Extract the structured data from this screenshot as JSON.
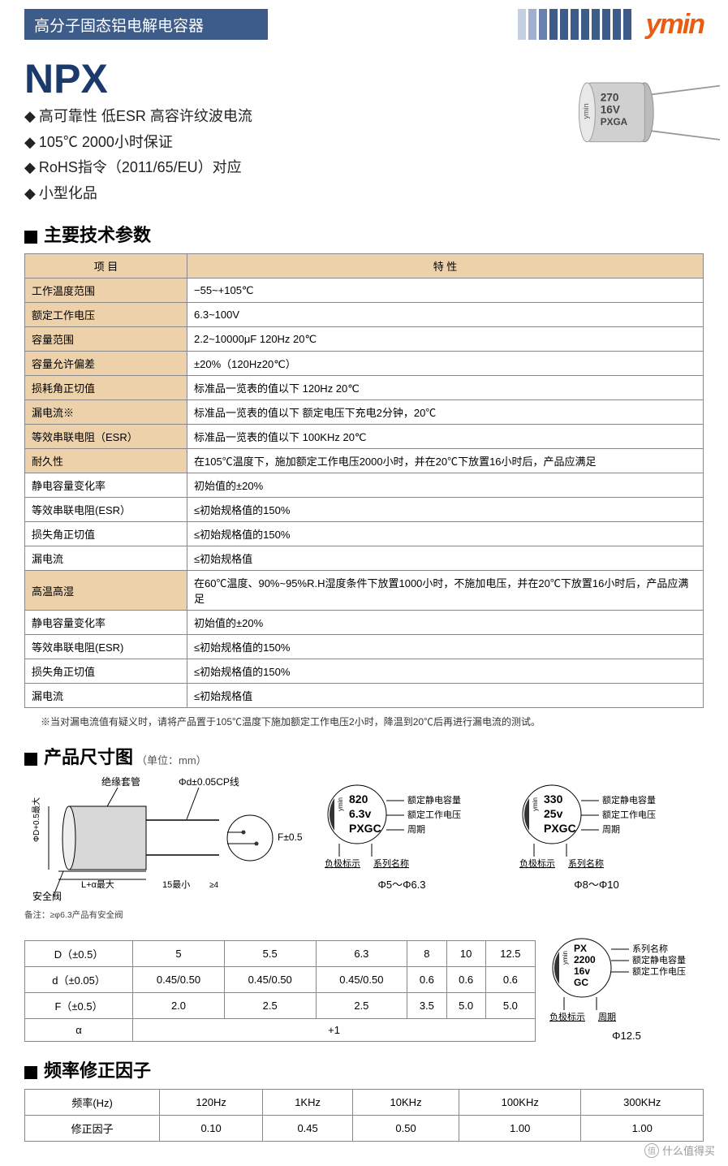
{
  "header": {
    "title": "高分子固态铝电解电容器",
    "background_color": "#3e5c8a",
    "stripe_colors": [
      "#c7d0e0",
      "#a0aed0",
      "#6780b0",
      "#3e5c8a",
      "#3e5c8a",
      "#3e5c8a",
      "#3e5c8a",
      "#3e5c8a",
      "#3e5c8a",
      "#3e5c8a",
      "#3e5c8a"
    ],
    "logo_text": "ymin",
    "logo_color": "#e85c13"
  },
  "product": {
    "name": "NPX",
    "features": [
      "高可靠性  低ESR  高容许纹波电流",
      "105℃ 2000小时保证",
      "RoHS指令（2011/65/EU）对应",
      "小型化品"
    ],
    "cap_label": {
      "line1": "270",
      "line2": "16V",
      "line3": "PXGA"
    }
  },
  "sections": {
    "spec_title": "主要技术参数",
    "dim_title": "产品尺寸图",
    "dim_sub": "（单位：mm）",
    "freq_title": "频率修正因子"
  },
  "spec_table": {
    "header_col1": "项 目",
    "header_col2": "特 性",
    "rows_simple": [
      {
        "label": "工作温度范围",
        "value": "−55~+105℃"
      },
      {
        "label": "额定工作电压",
        "value": "6.3~100V"
      },
      {
        "label": "容量范围",
        "value": "2.2~10000μF  120Hz  20℃"
      },
      {
        "label": "容量允许偏差",
        "value": "±20%（120Hz20℃）"
      },
      {
        "label": "损耗角正切值",
        "value": "标准品一览表的值以下 120Hz  20℃"
      },
      {
        "label": "漏电流※",
        "value": "标准品一览表的值以下 额定电压下充电2分钟，20℃"
      },
      {
        "label": "等效串联电阻（ESR）",
        "value": "标准品一览表的值以下 100KHz  20℃"
      }
    ],
    "endurance": {
      "label": "耐久性",
      "cond": "在105℃温度下，施加额定工作电压2000小时，并在20℃下放置16小时后，产品应满足",
      "items": [
        {
          "k": "静电容量变化率",
          "v": "初始值的±20%"
        },
        {
          "k": "等效串联电阻(ESR）",
          "v": "≤初始规格值的150%"
        },
        {
          "k": "损失角正切值",
          "v": "≤初始规格值的150%"
        },
        {
          "k": "漏电流",
          "v": "≤初始规格值"
        }
      ]
    },
    "humidity": {
      "label": "高温高湿",
      "cond": "在60℃温度、90%~95%R.H湿度条件下放置1000小时，不施加电压，并在20℃下放置16小时后，产品应满足",
      "items": [
        {
          "k": "静电容量变化率",
          "v": "初始值的±20%"
        },
        {
          "k": "等效串联电阻(ESR)",
          "v": "≤初始规格值的150%"
        },
        {
          "k": "损失角正切值",
          "v": "≤初始规格值的150%"
        },
        {
          "k": "漏电流",
          "v": "≤初始规格值"
        }
      ]
    },
    "footnote": "※当对漏电流值有疑义时，请将产品置于105℃温度下施加额定工作电压2小时，降温到20℃后再进行漏电流的测试。"
  },
  "dim_drawing": {
    "labels": {
      "sleeve": "绝缘套管",
      "phi_d": "Φd±0.05CP线",
      "F": "F±0.5",
      "La": "L+α最大",
      "fifteen": "15最小",
      "four": "≥4",
      "phiD": "ΦD+0.5最大",
      "valve": "安全阀",
      "note": "备注：≥φ6.3产品有安全阀"
    }
  },
  "markings": [
    {
      "values": [
        "820",
        "6.3v",
        "PXGC"
      ],
      "labels": [
        "额定静电容量",
        "额定工作电压",
        "周期"
      ],
      "bottom_left": "负极标示",
      "bottom_right": "系列名称",
      "range": "Φ5～Φ6.3"
    },
    {
      "values": [
        "330",
        "25v",
        "PXGC"
      ],
      "labels": [
        "额定静电容量",
        "额定工作电压",
        "周期"
      ],
      "bottom_left": "负极标示",
      "bottom_right": "系列名称",
      "range": "Φ8～Φ10"
    },
    {
      "values": [
        "PX",
        "2200",
        "16v",
        "GC"
      ],
      "labels": [
        "系列名称",
        "额定静电容量",
        "额定工作电压"
      ],
      "bottom_left": "负极标示",
      "bottom_right": "周期",
      "range": "Φ12.5"
    }
  ],
  "dim_table": {
    "columns": [
      "D（±0.5）",
      "5",
      "5.5",
      "6.3",
      "8",
      "10",
      "12.5"
    ],
    "rows": [
      [
        "d（±0.05）",
        "0.45/0.50",
        "0.45/0.50",
        "0.45/0.50",
        "0.6",
        "0.6",
        "0.6"
      ],
      [
        "F（±0.5）",
        "2.0",
        "2.5",
        "2.5",
        "3.5",
        "5.0",
        "5.0"
      ]
    ],
    "alpha_label": "α",
    "alpha_value": "+1"
  },
  "freq_table": {
    "header": [
      "频率(Hz)",
      "120Hz",
      "1KHz",
      "10KHz",
      "100KHz",
      "300KHz"
    ],
    "row_label": "修正因子",
    "values": [
      "0.10",
      "0.45",
      "0.50",
      "1.00",
      "1.00"
    ]
  },
  "watermark": "什么值得买"
}
